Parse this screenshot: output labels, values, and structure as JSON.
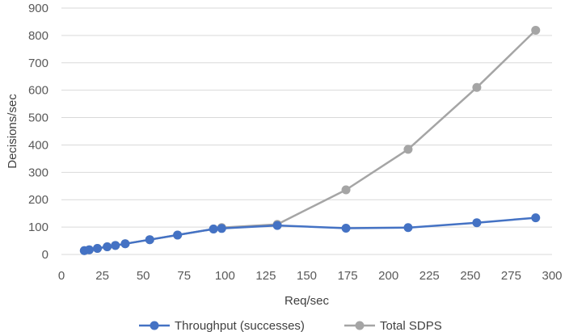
{
  "chart_data": {
    "type": "line",
    "title": "",
    "xlabel": "Req/sec",
    "ylabel": "Decisions/sec",
    "xlim": [
      0,
      300
    ],
    "ylim": [
      0,
      900
    ],
    "xticks": [
      0,
      25,
      50,
      75,
      100,
      125,
      150,
      175,
      200,
      225,
      250,
      275,
      300
    ],
    "yticks": [
      0,
      100,
      200,
      300,
      400,
      500,
      600,
      700,
      800,
      900
    ],
    "grid": "horizontal",
    "legend": "bottom",
    "series": [
      {
        "name": "Throughput (successes)",
        "color": "#4472C4",
        "points": [
          [
            14,
            14
          ],
          [
            17,
            17
          ],
          [
            22,
            22
          ],
          [
            28,
            28
          ],
          [
            33,
            33
          ],
          [
            39,
            39
          ],
          [
            54,
            54
          ],
          [
            71,
            71
          ],
          [
            93,
            93
          ],
          [
            98,
            95
          ],
          [
            132,
            106
          ],
          [
            174,
            96
          ],
          [
            212,
            98
          ],
          [
            254,
            116
          ],
          [
            290,
            134
          ]
        ]
      },
      {
        "name": "Total SDPS",
        "color": "#A5A5A5",
        "points": [
          [
            14,
            14
          ],
          [
            17,
            17
          ],
          [
            22,
            22
          ],
          [
            28,
            28
          ],
          [
            33,
            33
          ],
          [
            39,
            39
          ],
          [
            54,
            54
          ],
          [
            71,
            71
          ],
          [
            93,
            93
          ],
          [
            98,
            98
          ],
          [
            132,
            110
          ],
          [
            174,
            236
          ],
          [
            212,
            384
          ],
          [
            254,
            610
          ],
          [
            290,
            819
          ]
        ]
      }
    ]
  }
}
